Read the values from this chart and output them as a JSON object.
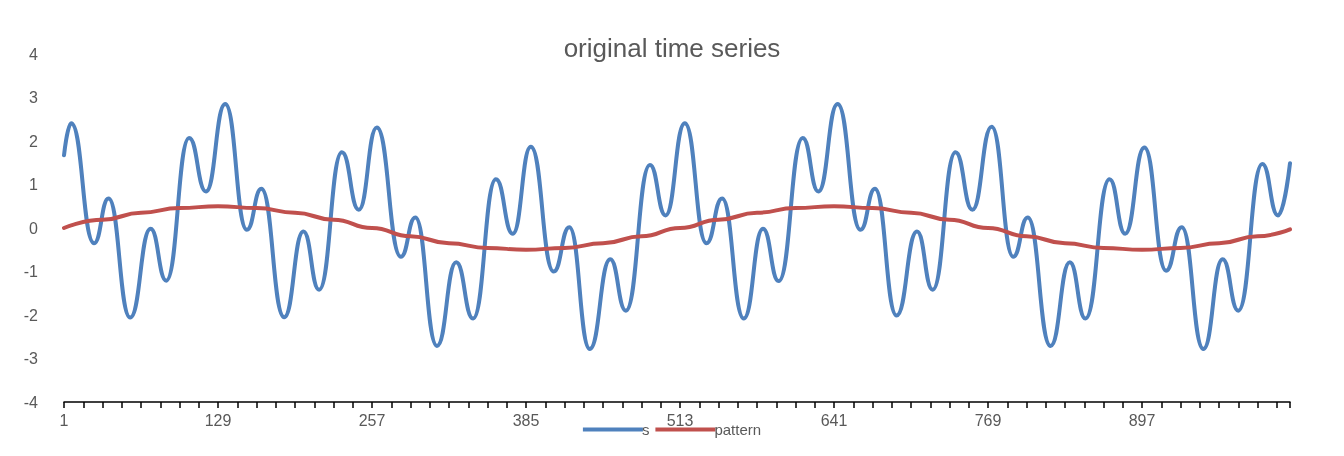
{
  "chart_data": {
    "type": "line",
    "title": "original time series",
    "xlim": [
      1,
      1020
    ],
    "ylim": [
      -4,
      4
    ],
    "yticks": [
      -4,
      -3,
      -2,
      -1,
      0,
      1,
      2,
      3,
      4
    ],
    "xticks": [
      1,
      {
        "value": 17,
        "label": null
      },
      {
        "value": 33,
        "label": null
      },
      {
        "value": 49,
        "label": null
      },
      {
        "value": 65,
        "label": null
      },
      {
        "value": 81,
        "label": null
      },
      {
        "value": 97,
        "label": null
      },
      {
        "value": 113,
        "label": null
      },
      129,
      {
        "value": 145,
        "label": null
      },
      {
        "value": 161,
        "label": null
      },
      {
        "value": 177,
        "label": null
      },
      {
        "value": 193,
        "label": null
      },
      {
        "value": 209,
        "label": null
      },
      {
        "value": 225,
        "label": null
      },
      {
        "value": 241,
        "label": null
      },
      257,
      {
        "value": 273,
        "label": null
      },
      {
        "value": 289,
        "label": null
      },
      {
        "value": 305,
        "label": null
      },
      {
        "value": 321,
        "label": null
      },
      {
        "value": 337,
        "label": null
      },
      {
        "value": 353,
        "label": null
      },
      {
        "value": 369,
        "label": null
      },
      385,
      {
        "value": 401,
        "label": null
      },
      {
        "value": 417,
        "label": null
      },
      {
        "value": 433,
        "label": null
      },
      {
        "value": 449,
        "label": null
      },
      {
        "value": 465,
        "label": null
      },
      {
        "value": 481,
        "label": null
      },
      {
        "value": 497,
        "label": null
      },
      513,
      {
        "value": 529,
        "label": null
      },
      {
        "value": 545,
        "label": null
      },
      {
        "value": 561,
        "label": null
      },
      {
        "value": 577,
        "label": null
      },
      {
        "value": 593,
        "label": null
      },
      {
        "value": 609,
        "label": null
      },
      {
        "value": 625,
        "label": null
      },
      641,
      {
        "value": 657,
        "label": null
      },
      {
        "value": 673,
        "label": null
      },
      {
        "value": 689,
        "label": null
      },
      {
        "value": 705,
        "label": null
      },
      {
        "value": 721,
        "label": null
      },
      {
        "value": 737,
        "label": null
      },
      {
        "value": 753,
        "label": null
      },
      769,
      {
        "value": 785,
        "label": null
      },
      {
        "value": 801,
        "label": null
      },
      {
        "value": 817,
        "label": null
      },
      {
        "value": 833,
        "label": null
      },
      {
        "value": 849,
        "label": null
      },
      {
        "value": 865,
        "label": null
      },
      {
        "value": 881,
        "label": null
      },
      897,
      {
        "value": 913,
        "label": null
      },
      {
        "value": 929,
        "label": null
      },
      {
        "value": 945,
        "label": null
      },
      {
        "value": 961,
        "label": null
      },
      {
        "value": 977,
        "label": null
      },
      {
        "value": 993,
        "label": null
      },
      {
        "value": 1009,
        "label": null
      },
      {
        "value": 1020,
        "label": null
      }
    ],
    "grid": false,
    "legend": "bottom",
    "marker": "none",
    "line_style": "solid",
    "series": [
      {
        "name": "s",
        "color": "#4f81bd",
        "x": [
          1,
          7,
          26,
          38,
          56,
          73,
          86,
          105,
          119,
          135,
          153,
          165,
          184,
          200,
          213,
          232,
          246,
          261,
          281,
          293,
          311,
          327,
          341,
          360,
          374,
          389,
          408,
          421,
          438,
          455,
          468,
          488,
          501,
          517,
          535,
          548,
          566,
          582,
          595,
          615,
          628,
          644,
          663,
          675,
          693,
          710,
          723,
          742,
          756,
          772,
          790,
          802,
          821,
          837,
          850,
          870,
          883,
          899,
          917,
          930,
          948,
          964,
          977,
          997,
          1010,
          1020
        ],
        "values": [
          1.67,
          2.41,
          -0.35,
          0.68,
          -2.06,
          -0.02,
          -1.21,
          2.07,
          0.84,
          2.85,
          -0.04,
          0.9,
          -2.05,
          -0.08,
          -1.42,
          1.74,
          0.42,
          2.31,
          -0.66,
          0.24,
          -2.71,
          -0.79,
          -2.08,
          1.12,
          -0.13,
          1.87,
          -1.0,
          0.02,
          -2.78,
          -0.72,
          -1.9,
          1.45,
          0.29,
          2.41,
          -0.35,
          0.68,
          -2.08,
          -0.02,
          -1.22,
          2.07,
          0.84,
          2.85,
          -0.04,
          0.9,
          -2.01,
          -0.08,
          -1.42,
          1.74,
          0.42,
          2.33,
          -0.66,
          0.24,
          -2.71,
          -0.79,
          -2.08,
          1.12,
          -0.13,
          1.85,
          -0.98,
          0.02,
          -2.78,
          -0.72,
          -1.9,
          1.47,
          0.29,
          1.49
        ]
      },
      {
        "name": "pattern",
        "color": "#c0504d",
        "x": [
          1,
          33,
          65,
          97,
          129,
          161,
          193,
          225,
          257,
          289,
          321,
          353,
          385,
          417,
          449,
          481,
          513,
          545,
          577,
          609,
          641,
          673,
          705,
          737,
          769,
          801,
          833,
          865,
          897,
          929,
          961,
          993,
          1020
        ],
        "values": [
          0,
          0.19,
          0.35,
          0.46,
          0.5,
          0.46,
          0.35,
          0.19,
          0,
          -0.19,
          -0.35,
          -0.46,
          -0.5,
          -0.46,
          -0.35,
          -0.19,
          0,
          0.19,
          0.35,
          0.46,
          0.5,
          0.46,
          0.35,
          0.19,
          0,
          -0.19,
          -0.35,
          -0.46,
          -0.5,
          -0.46,
          -0.35,
          -0.19,
          -0.03
        ]
      }
    ]
  }
}
